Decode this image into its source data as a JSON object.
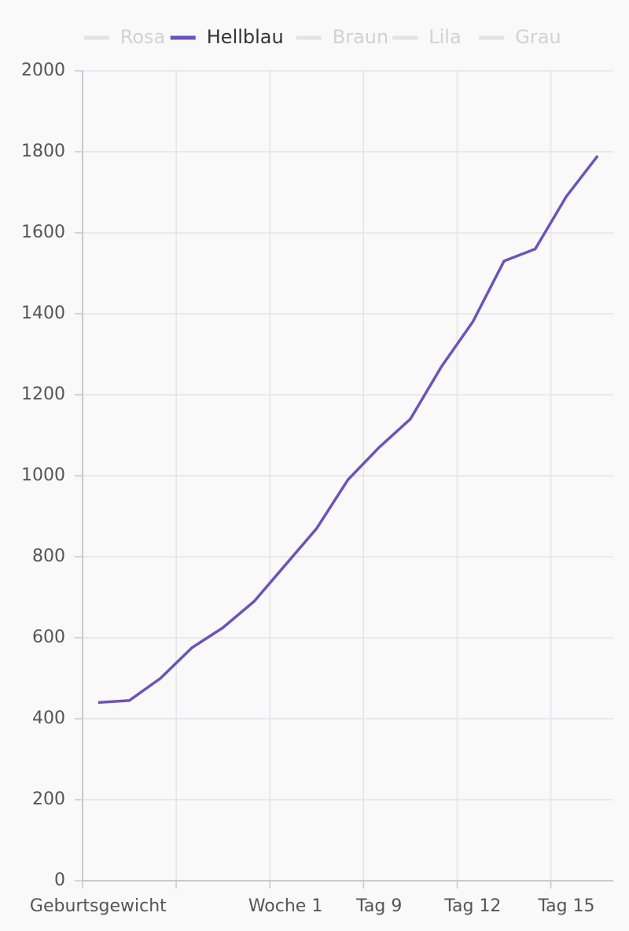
{
  "chart_data": {
    "type": "line",
    "categories": [
      "Geburtsgewicht",
      null,
      null,
      null,
      null,
      null,
      "Woche 1",
      null,
      null,
      "Tag 9",
      null,
      null,
      "Tag 12",
      null,
      null,
      "Tag 15",
      null
    ],
    "series": [
      {
        "name": "Rosa",
        "color": "#e3e3e3",
        "hidden": true
      },
      {
        "name": "Hellblau",
        "color": "#6a55b8",
        "values": [
          440,
          445,
          500,
          575,
          625,
          690,
          780,
          870,
          990,
          1070,
          1140,
          1270,
          1380,
          1530,
          1560,
          1690,
          1790
        ]
      },
      {
        "name": "Braun",
        "color": "#e3e3e3",
        "hidden": true
      },
      {
        "name": "Lila",
        "color": "#e3e3e3",
        "hidden": true
      },
      {
        "name": "Grau",
        "color": "#e3e3e3",
        "hidden": true
      }
    ],
    "ylim": [
      0,
      2000
    ],
    "yticks": [
      0,
      200,
      400,
      600,
      800,
      1000,
      1200,
      1400,
      1600,
      1800,
      2000
    ],
    "grid": true
  }
}
